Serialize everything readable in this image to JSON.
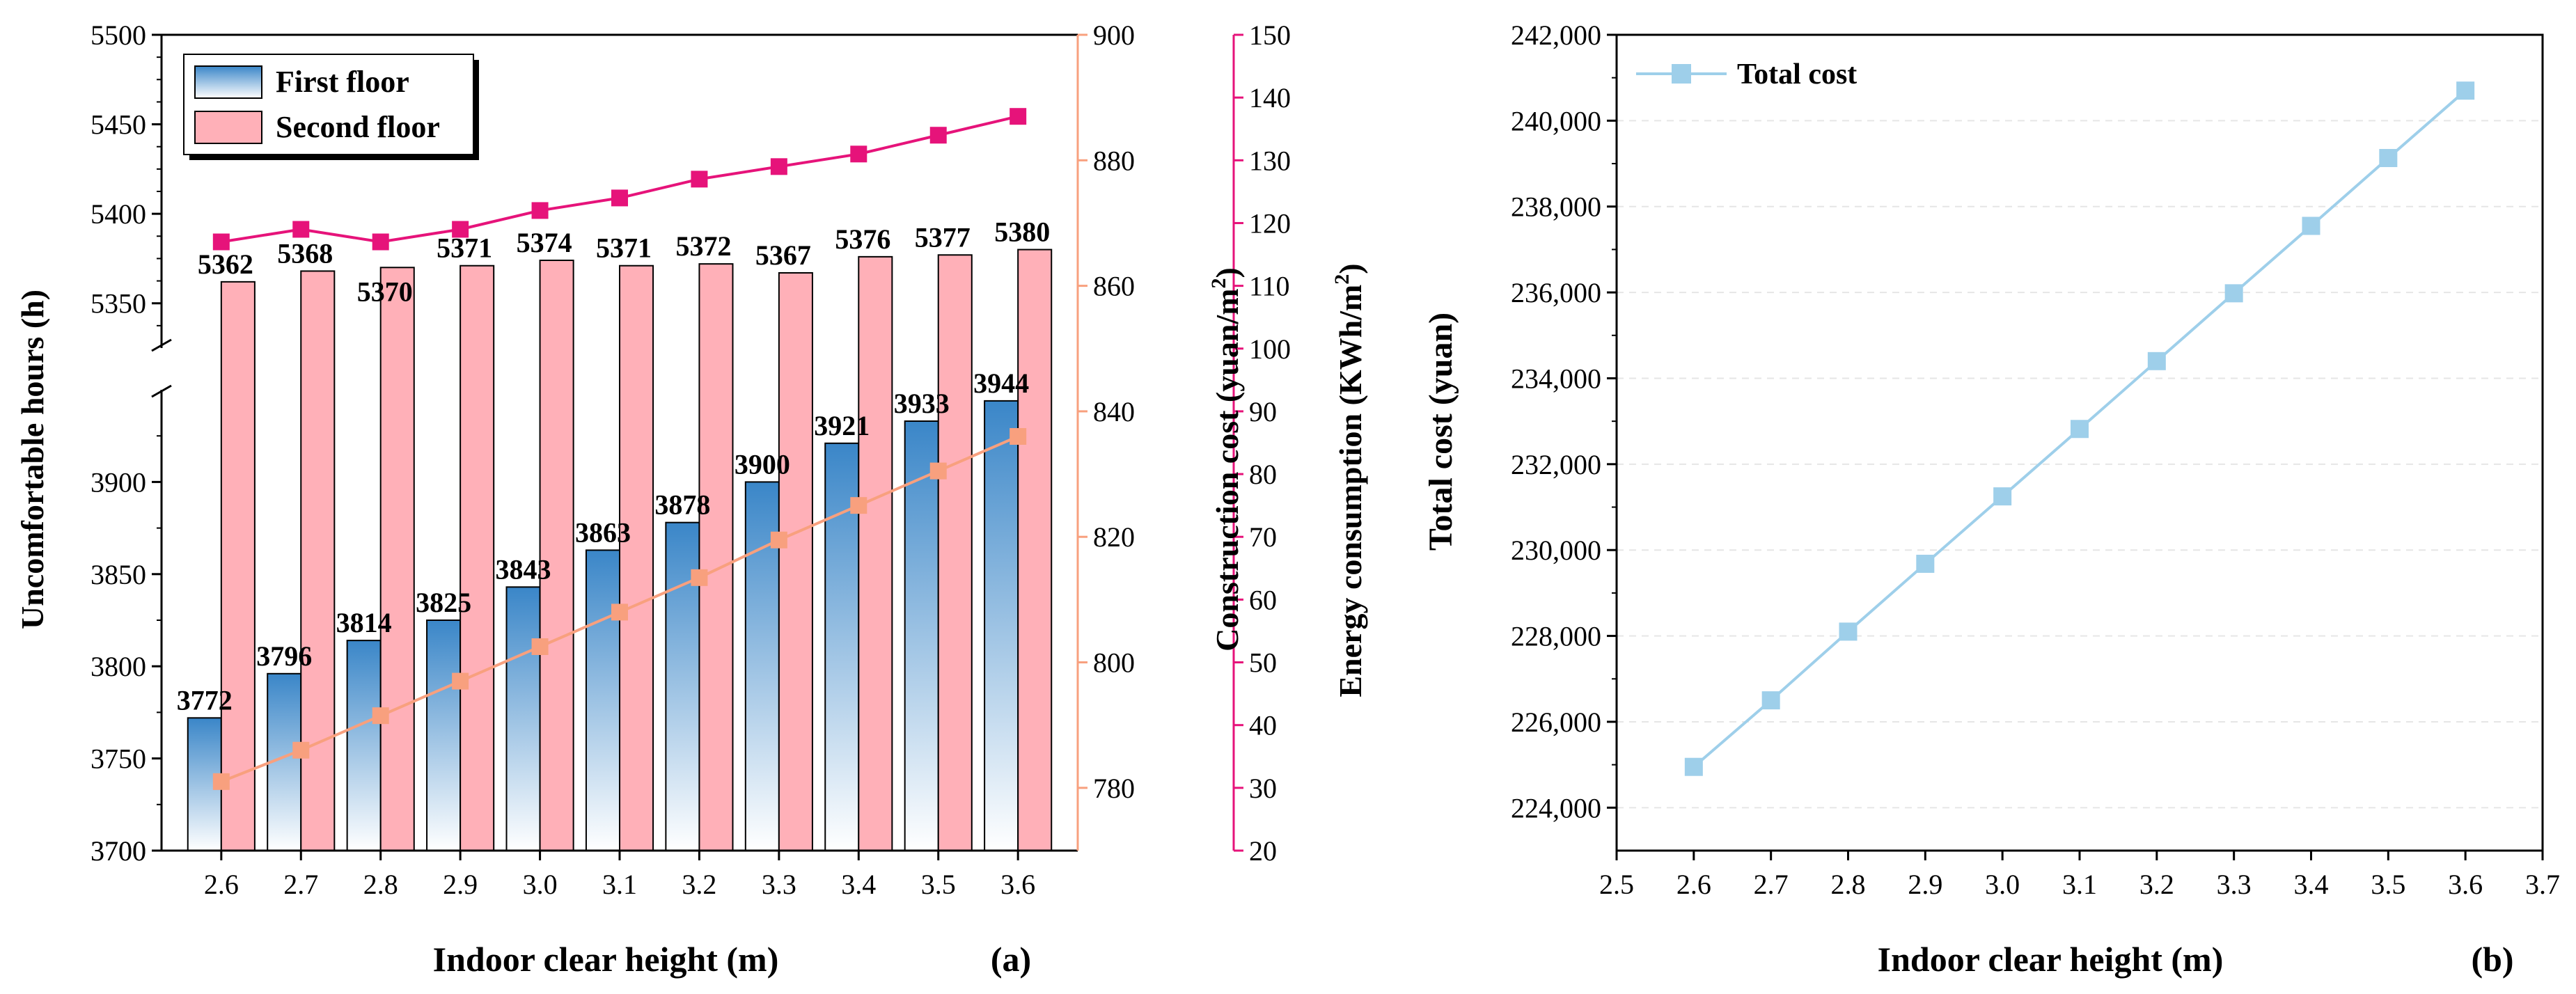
{
  "colors": {
    "first_floor": "#5B9BD5",
    "second_floor": "#FFB0B8",
    "construction": "#F8A07E",
    "energy": "#E6137A",
    "total": "#9ECFEA",
    "axis": "#000000",
    "grid": "#e6e6e6"
  },
  "chart_data": [
    {
      "type": "bar",
      "panel_label": "(a)",
      "xlabel": "Indoor clear height (m)",
      "ylabel": "Uncomfortable hours (h)",
      "categories": [
        "2.6",
        "2.7",
        "2.8",
        "2.9",
        "3.0",
        "3.1",
        "3.2",
        "3.3",
        "3.4",
        "3.5",
        "3.6"
      ],
      "x": [
        2.6,
        2.7,
        2.8,
        2.9,
        3.0,
        3.1,
        3.2,
        3.3,
        3.4,
        3.5,
        3.6
      ],
      "y_axis_break": {
        "lower_range": [
          3700,
          3950
        ],
        "upper_range": [
          5325,
          5500
        ],
        "lower_ticks": [
          "3700",
          "3750",
          "3800",
          "3850",
          "3900"
        ],
        "upper_ticks": [
          "5350",
          "5400",
          "5450",
          "5500"
        ]
      },
      "series": [
        {
          "name": "First floor",
          "type": "bar",
          "axis": "left",
          "values": [
            3772,
            3796,
            3814,
            3825,
            3843,
            3863,
            3878,
            3900,
            3921,
            3933,
            3944
          ],
          "labels": [
            "3772",
            "3796",
            "3814",
            "3825",
            "3843",
            "3863",
            "3878",
            "3900",
            "3921",
            "3933",
            "3944"
          ]
        },
        {
          "name": "Second floor",
          "type": "bar",
          "axis": "left",
          "values": [
            5362,
            5368,
            5370,
            5371,
            5374,
            5371,
            5372,
            5367,
            5376,
            5377,
            5380
          ],
          "labels": [
            "5362",
            "5368",
            "5370",
            "5371",
            "5374",
            "5371",
            "5372",
            "5367",
            "5376",
            "5377",
            "5380"
          ]
        },
        {
          "type": "line",
          "axis": "construction",
          "marker": "square",
          "values": [
            781,
            786,
            791.5,
            797,
            802.5,
            808,
            813.5,
            819.5,
            825,
            830.5,
            836
          ]
        },
        {
          "type": "line",
          "axis": "energy",
          "marker": "square",
          "values": [
            117,
            119,
            117,
            119,
            122,
            124,
            127,
            129,
            131,
            134,
            137
          ]
        }
      ],
      "axes": {
        "construction": {
          "label_text": "Construction cost (yuan/m",
          "label_sup": "2",
          "label_end": ")",
          "ylim": [
            770,
            900
          ],
          "ticks": [
            "780",
            "800",
            "820",
            "840",
            "860",
            "880",
            "900"
          ]
        },
        "energy": {
          "label_text": "Energy consumption (KWh/m",
          "label_sup": "2",
          "label_end": ")",
          "ylim": [
            20,
            150
          ],
          "ticks": [
            "20",
            "30",
            "40",
            "50",
            "60",
            "70",
            "80",
            "90",
            "100",
            "110",
            "120",
            "130",
            "140",
            "150"
          ]
        }
      },
      "legend": {
        "position": "top-left",
        "entries": [
          "First floor",
          "Second floor"
        ]
      }
    },
    {
      "type": "line",
      "panel_label": "(b)",
      "xlabel": "Indoor clear height (m)",
      "ylabel": "Total cost (yuan)",
      "xlim": [
        2.5,
        3.7
      ],
      "ylim": [
        223000,
        242000
      ],
      "xticks": [
        "2.5",
        "2.6",
        "2.7",
        "2.8",
        "2.9",
        "3.0",
        "3.1",
        "3.2",
        "3.3",
        "3.4",
        "3.5",
        "3.6",
        "3.7"
      ],
      "yticks": [
        "224,000",
        "226,000",
        "228,000",
        "230,000",
        "232,000",
        "234,000",
        "236,000",
        "238,000",
        "240,000",
        "242,000"
      ],
      "grid": true,
      "series": [
        {
          "name": "Total cost",
          "marker": "square",
          "x": [
            2.6,
            2.7,
            2.8,
            2.9,
            3.0,
            3.1,
            3.2,
            3.3,
            3.4,
            3.5,
            3.6
          ],
          "values": [
            224950,
            226500,
            228100,
            229680,
            231250,
            232820,
            234400,
            235980,
            237550,
            239130,
            240700
          ]
        }
      ],
      "legend": {
        "position": "top-left",
        "entries": [
          "Total cost"
        ]
      }
    }
  ]
}
